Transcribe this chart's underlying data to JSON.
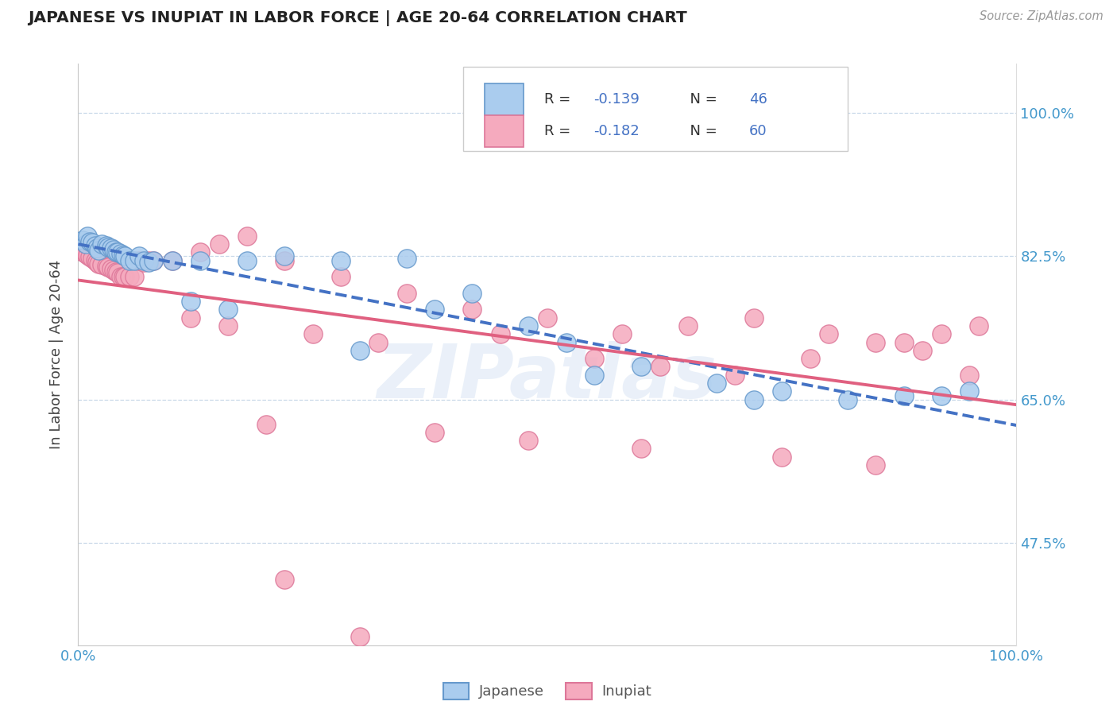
{
  "title": "JAPANESE VS INUPIAT IN LABOR FORCE | AGE 20-64 CORRELATION CHART",
  "source_text": "Source: ZipAtlas.com",
  "ylabel": "In Labor Force | Age 20-64",
  "xlim": [
    0.0,
    1.0
  ],
  "ylim": [
    0.35,
    1.06
  ],
  "yticks": [
    0.475,
    0.65,
    0.825,
    1.0
  ],
  "ytick_labels": [
    "47.5%",
    "65.0%",
    "82.5%",
    "100.0%"
  ],
  "xtick_labels": [
    "0.0%",
    "100.0%"
  ],
  "japanese_R": -0.139,
  "japanese_N": 46,
  "inupiat_R": -0.182,
  "inupiat_N": 60,
  "japanese_color": "#aaccee",
  "inupiat_color": "#f5aabe",
  "japanese_edge_color": "#6699cc",
  "inupiat_edge_color": "#dd7799",
  "japanese_line_color": "#4472c4",
  "inupiat_line_color": "#e06080",
  "watermark": "ZIPatlas",
  "legend_japanese_label": "Japanese",
  "legend_inupiat_label": "Inupiat",
  "japanese_x": [
    0.005,
    0.008,
    0.01,
    0.012,
    0.015,
    0.018,
    0.02,
    0.022,
    0.025,
    0.03,
    0.032,
    0.035,
    0.038,
    0.04,
    0.042,
    0.045,
    0.048,
    0.05,
    0.055,
    0.06,
    0.065,
    0.07,
    0.075,
    0.08,
    0.1,
    0.13,
    0.18,
    0.22,
    0.28,
    0.35,
    0.12,
    0.16,
    0.42,
    0.48,
    0.38,
    0.52,
    0.6,
    0.68,
    0.75,
    0.82,
    0.88,
    0.92,
    0.95,
    0.3,
    0.55,
    0.72
  ],
  "japanese_y": [
    0.845,
    0.84,
    0.85,
    0.843,
    0.842,
    0.838,
    0.835,
    0.832,
    0.84,
    0.838,
    0.836,
    0.835,
    0.833,
    0.83,
    0.83,
    0.828,
    0.826,
    0.825,
    0.82,
    0.82,
    0.825,
    0.82,
    0.818,
    0.82,
    0.82,
    0.82,
    0.82,
    0.825,
    0.82,
    0.822,
    0.77,
    0.76,
    0.78,
    0.74,
    0.76,
    0.72,
    0.69,
    0.67,
    0.66,
    0.65,
    0.655,
    0.655,
    0.66,
    0.71,
    0.68,
    0.65
  ],
  "inupiat_x": [
    0.005,
    0.008,
    0.01,
    0.012,
    0.015,
    0.018,
    0.02,
    0.022,
    0.025,
    0.03,
    0.032,
    0.035,
    0.038,
    0.04,
    0.042,
    0.045,
    0.048,
    0.05,
    0.055,
    0.06,
    0.065,
    0.07,
    0.075,
    0.08,
    0.1,
    0.13,
    0.15,
    0.18,
    0.22,
    0.28,
    0.35,
    0.42,
    0.5,
    0.58,
    0.65,
    0.72,
    0.8,
    0.88,
    0.92,
    0.96,
    0.12,
    0.16,
    0.25,
    0.32,
    0.45,
    0.55,
    0.62,
    0.7,
    0.78,
    0.85,
    0.9,
    0.95,
    0.2,
    0.38,
    0.48,
    0.6,
    0.75,
    0.85,
    0.22,
    0.3
  ],
  "inupiat_y": [
    0.83,
    0.828,
    0.826,
    0.824,
    0.822,
    0.82,
    0.818,
    0.816,
    0.815,
    0.813,
    0.812,
    0.81,
    0.808,
    0.806,
    0.805,
    0.8,
    0.8,
    0.8,
    0.8,
    0.8,
    0.82,
    0.818,
    0.82,
    0.82,
    0.82,
    0.83,
    0.84,
    0.85,
    0.82,
    0.8,
    0.78,
    0.76,
    0.75,
    0.73,
    0.74,
    0.75,
    0.73,
    0.72,
    0.73,
    0.74,
    0.75,
    0.74,
    0.73,
    0.72,
    0.73,
    0.7,
    0.69,
    0.68,
    0.7,
    0.72,
    0.71,
    0.68,
    0.62,
    0.61,
    0.6,
    0.59,
    0.58,
    0.57,
    0.43,
    0.36
  ]
}
